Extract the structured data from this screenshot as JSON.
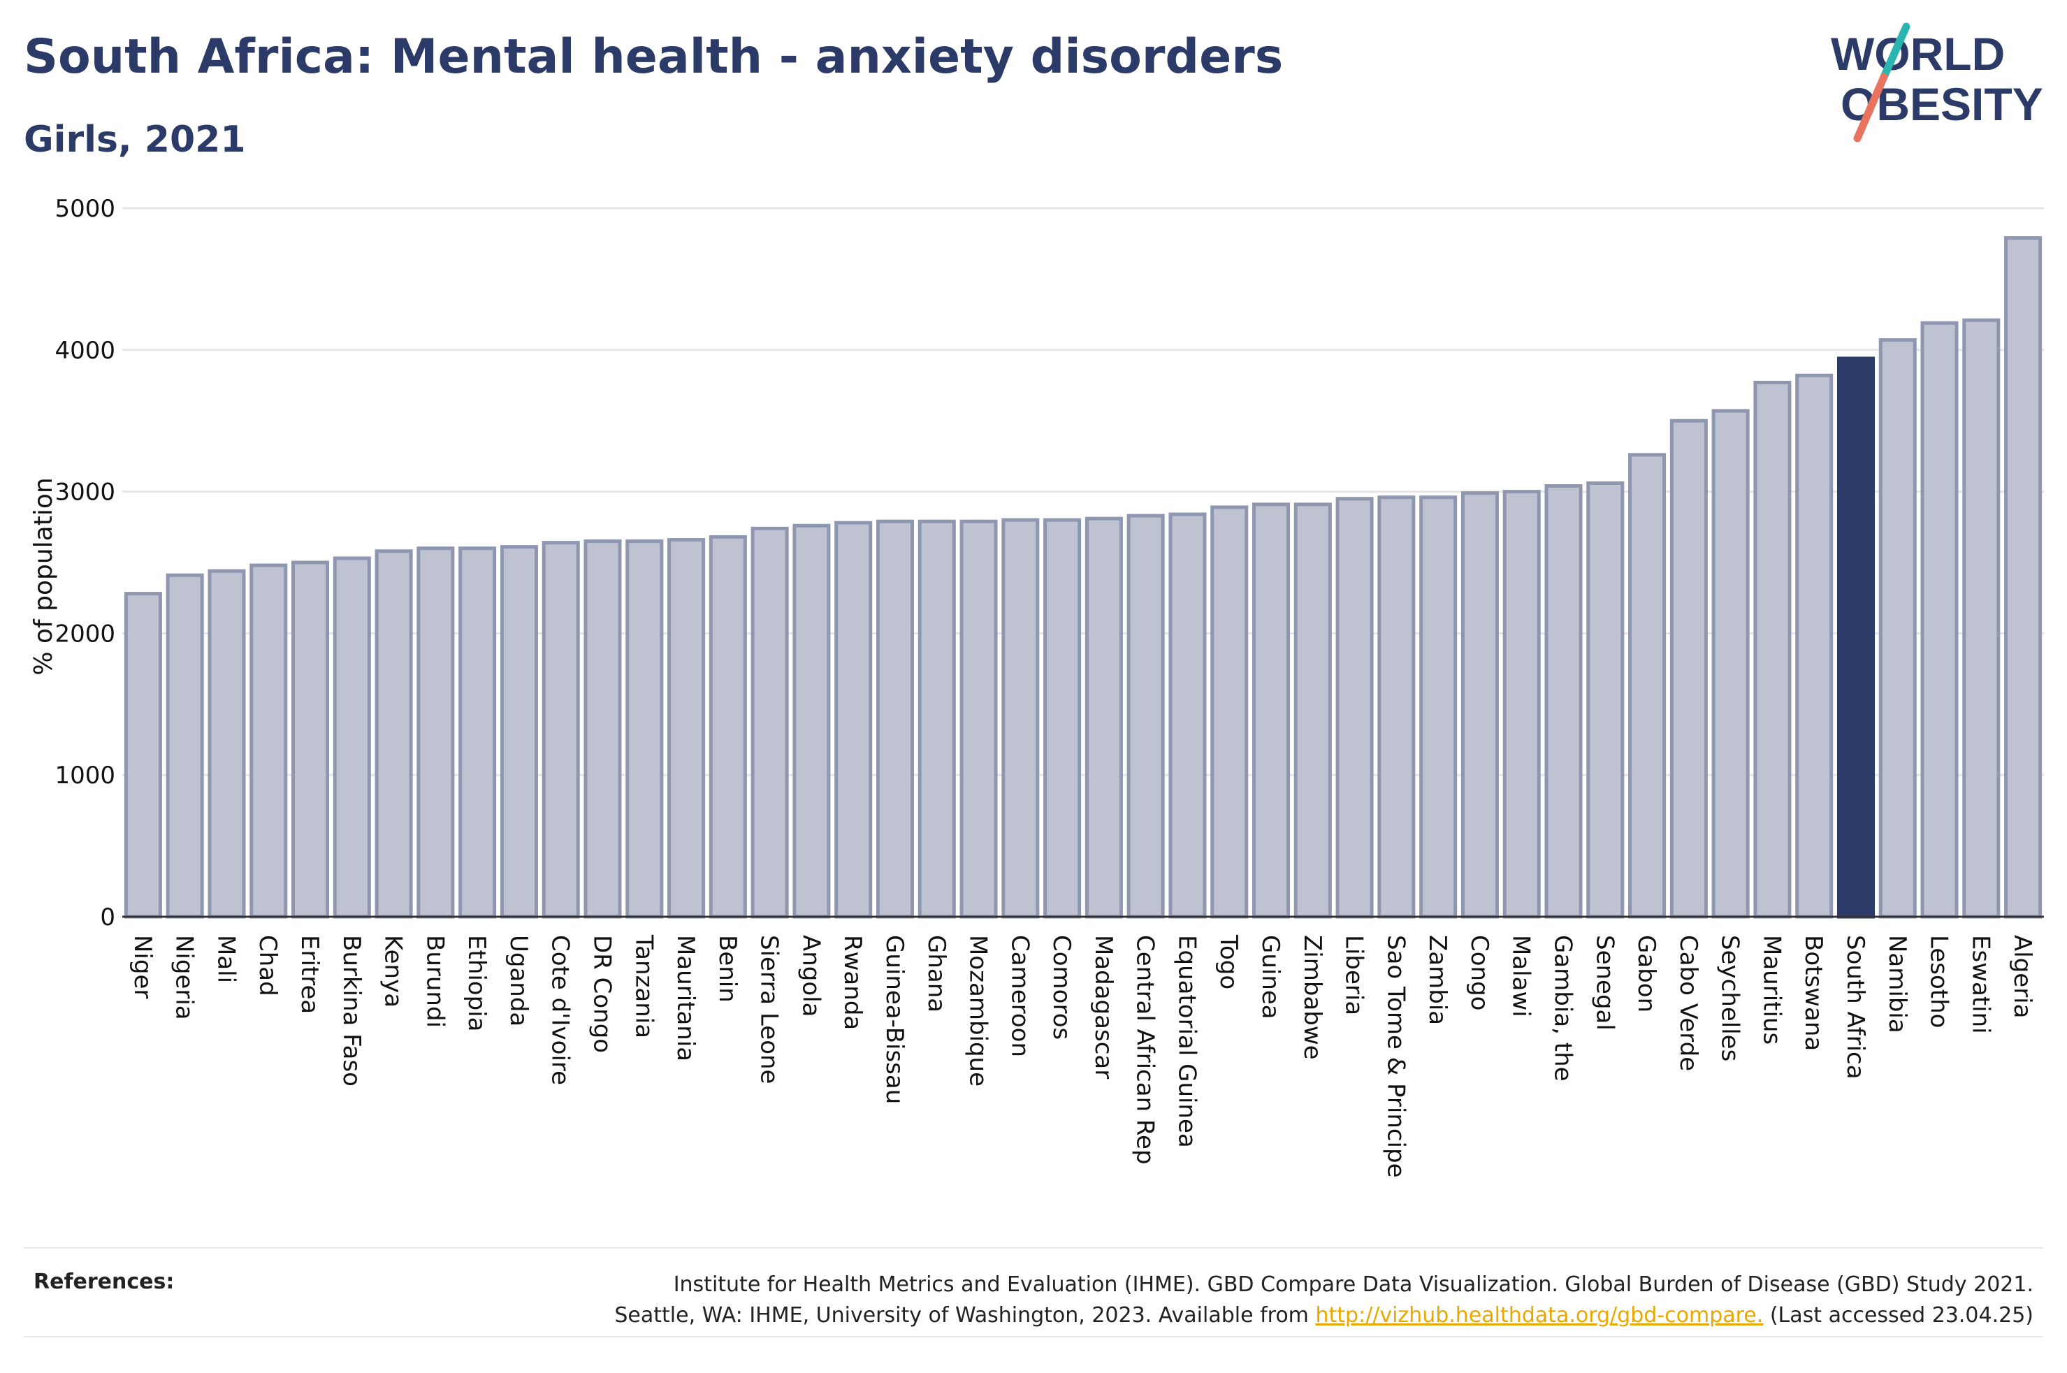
{
  "header": {
    "title": "South Africa: Mental health - anxiety disorders",
    "subtitle": "Girls, 2021"
  },
  "logo": {
    "line1": "WORLD",
    "line2": "OBESITY"
  },
  "colors": {
    "highlight": "#2b3a67",
    "bar": "#bfc3d1",
    "bar_edge": "#8f96b0",
    "grid": "#e6e6e6",
    "title": "#2b3a67",
    "link": "#e8a800",
    "logo_teal": "#2bb5b0",
    "logo_coral": "#e8735f"
  },
  "chart_data": {
    "type": "bar",
    "ylabel": "% of population",
    "xlabel": "",
    "ylim": [
      0,
      5000
    ],
    "yticks": [
      0,
      1000,
      2000,
      3000,
      4000,
      5000
    ],
    "grid": true,
    "highlight": "South Africa",
    "categories": [
      "Niger",
      "Nigeria",
      "Mali",
      "Chad",
      "Eritrea",
      "Burkina Faso",
      "Kenya",
      "Burundi",
      "Ethiopia",
      "Uganda",
      "Cote d'Ivoire",
      "DR Congo",
      "Tanzania",
      "Mauritania",
      "Benin",
      "Sierra Leone",
      "Angola",
      "Rwanda",
      "Guinea-Bissau",
      "Ghana",
      "Mozambique",
      "Cameroon",
      "Comoros",
      "Madagascar",
      "Central African Rep",
      "Equatorial Guinea",
      "Togo",
      "Guinea",
      "Zimbabwe",
      "Liberia",
      "Sao Tome & Principe",
      "Zambia",
      "Congo",
      "Malawi",
      "Gambia, the",
      "Senegal",
      "Gabon",
      "Cabo Verde",
      "Seychelles",
      "Mauritius",
      "Botswana",
      "South Africa",
      "Namibia",
      "Lesotho",
      "Eswatini",
      "Algeria"
    ],
    "values": [
      2280,
      2410,
      2440,
      2480,
      2500,
      2530,
      2580,
      2600,
      2600,
      2610,
      2640,
      2650,
      2650,
      2660,
      2680,
      2740,
      2760,
      2780,
      2790,
      2790,
      2790,
      2800,
      2800,
      2810,
      2830,
      2840,
      2890,
      2910,
      2910,
      2950,
      2960,
      2960,
      2990,
      3000,
      3040,
      3060,
      3260,
      3500,
      3570,
      3770,
      3820,
      3940,
      4070,
      4190,
      4210,
      4790
    ]
  },
  "footer": {
    "label": "References:",
    "line1": "Institute for Health Metrics and Evaluation (IHME). GBD Compare Data Visualization. Global Burden of Disease (GBD) Study 2021.",
    "line2_prefix": "Seattle, WA: IHME, University of Washington, 2023. Available from ",
    "link": "http://vizhub.healthdata.org/gbd-compare.",
    "line2_suffix": " (Last accessed 23.04.25)"
  }
}
